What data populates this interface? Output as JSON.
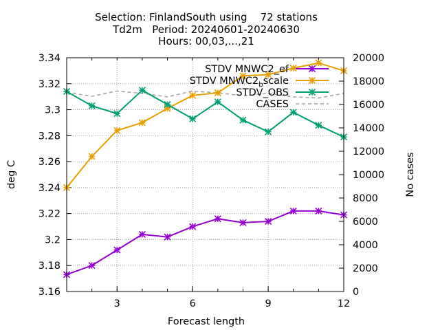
{
  "chart_data": {
    "type": "line",
    "title_lines": [
      "Selection: FinlandSouth using    72 stations",
      "Td2m   Period: 20240601-20240630",
      "Hours: 00,03,...,21"
    ],
    "xlabel": "Forecast length",
    "ylabel": "deg C",
    "y2label": "No cases",
    "xlim": [
      1,
      12
    ],
    "ylim": [
      3.16,
      3.34
    ],
    "y2lim": [
      0,
      20000
    ],
    "x_ticks": [
      3,
      6,
      9,
      12
    ],
    "y_ticks": [
      3.16,
      3.18,
      3.2,
      3.22,
      3.24,
      3.26,
      3.28,
      3.3,
      3.32,
      3.34
    ],
    "y_tick_labels": [
      "3.16",
      "3.18",
      "3.2",
      "3.22",
      "3.24",
      "3.26",
      "3.28",
      "3.3",
      "3.32",
      "3.34"
    ],
    "y2_ticks": [
      0,
      2000,
      4000,
      6000,
      8000,
      10000,
      12000,
      14000,
      16000,
      18000,
      20000
    ],
    "grid": true,
    "legend_position": "top-right",
    "x": [
      1,
      2,
      3,
      4,
      5,
      6,
      7,
      8,
      9,
      10,
      11,
      12
    ],
    "series": [
      {
        "name": "STDV MNWC2_ef",
        "axis": "y",
        "color": "#9400d3",
        "values": [
          3.173,
          3.18,
          3.192,
          3.204,
          3.202,
          3.21,
          3.216,
          3.213,
          3.214,
          3.222,
          3.222,
          3.219
        ]
      },
      {
        "name": "STDV MNWC2_bscale",
        "legend_main": "STDV MNWC2",
        "legend_sub": "b",
        "legend_tail": "scale",
        "axis": "y",
        "color": "#e69f00",
        "values": [
          3.24,
          3.264,
          3.284,
          3.29,
          3.301,
          3.311,
          3.313,
          3.326,
          3.327,
          3.332,
          3.336,
          3.33
        ]
      },
      {
        "name": "STDV_OBS",
        "axis": "y",
        "color": "#009e73",
        "values": [
          3.314,
          3.303,
          3.297,
          3.315,
          3.304,
          3.293,
          3.306,
          3.292,
          3.283,
          3.298,
          3.288,
          3.279
        ]
      },
      {
        "name": "CASES",
        "axis": "y2",
        "color": "#a0a0a0",
        "dashed": true,
        "values": [
          17050,
          16700,
          17150,
          16950,
          16650,
          17150,
          17000,
          16750,
          16950,
          16650,
          16550,
          16950
        ]
      }
    ]
  }
}
